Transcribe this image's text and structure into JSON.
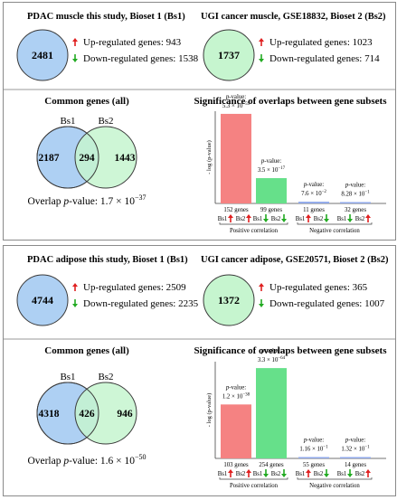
{
  "panels": [
    {
      "id": "muscle",
      "bs1_title": "PDAC muscle this study, Bioset  1 (Bs1)",
      "bs2_title": "UGI cancer muscle, GSE18832, Bioset  2 (Bs2)",
      "bs1_total": "2481",
      "bs1_up": "Up-regulated genes: 943",
      "bs1_down": "Down-regulated genes: 1538",
      "bs2_total": "1737",
      "bs2_up": "Up-regulated genes: 1023",
      "bs2_down": "Down-regulated genes: 714",
      "common_title": "Common genes (all)",
      "venn_label_bs1": "Bs1",
      "venn_label_bs2": "Bs2",
      "venn_only_bs1": "2187",
      "venn_shared": "294",
      "venn_only_bs2": "1443",
      "overlap_prefix": "Overlap ",
      "overlap_p": "p",
      "overlap_mid": "-value: 1.7 × 10",
      "overlap_exp": "−37",
      "sig_title": "Significance of overlaps between gene subsets",
      "ylabel": "- log (p-value)",
      "bars": [
        {
          "genes": "152 genes",
          "pval_label": "p-value:",
          "pval": "5.3 × 10",
          "exp": "−59",
          "neglog": 58.28,
          "color": "#f58282",
          "bs1": "up",
          "bs2": "up"
        },
        {
          "genes": "99 genes",
          "pval_label": "p-value:",
          "pval": "3.5 × 10",
          "exp": "−17",
          "neglog": 16.46,
          "color": "#66e08a",
          "bs1": "down",
          "bs2": "down"
        },
        {
          "genes": "11 genes",
          "pval_label": "p-value:",
          "pval": "7.6 × 10",
          "exp": "−2",
          "neglog": 1.12,
          "color": "#8fa8ea",
          "bs1": "up",
          "bs2": "down"
        },
        {
          "genes": "32 genes",
          "pval_label": "p-value:",
          "pval": "8.28 × 10",
          "exp": "−1",
          "neglog": 0.08,
          "color": "#8fa8ea",
          "bs1": "down",
          "bs2": "up"
        }
      ],
      "group_pos": "Positive correlation",
      "group_neg": "Negative correlation"
    },
    {
      "id": "adipose",
      "bs1_title": "PDAC adipose this study, Bioset  1 (Bs1)",
      "bs2_title": "UGI cancer adipose, GSE20571, Bioset  2 (Bs2)",
      "bs1_total": "4744",
      "bs1_up": "Up-regulated genes: 2509",
      "bs1_down": "Down-regulated genes: 2235",
      "bs2_total": "1372",
      "bs2_up": "Up-regulated genes: 365",
      "bs2_down": "Down-regulated genes: 1007",
      "common_title": "Common genes (all)",
      "venn_label_bs1": "Bs1",
      "venn_label_bs2": "Bs2",
      "venn_only_bs1": "4318",
      "venn_shared": "426",
      "venn_only_bs2": "946",
      "overlap_prefix": "Overlap ",
      "overlap_p": "p",
      "overlap_mid": "-value: 1.6 × 10",
      "overlap_exp": "−50",
      "sig_title": "Significance of overlaps between gene subsets",
      "ylabel": "- log (p-value)",
      "bars": [
        {
          "genes": "103 genes",
          "pval_label": "p-value:",
          "pval": "1.2 × 10",
          "exp": "−38",
          "neglog": 37.92,
          "color": "#f58282",
          "bs1": "up",
          "bs2": "up"
        },
        {
          "genes": "254 genes",
          "pval_label": "p-value:",
          "pval": "3.3 × 10",
          "exp": "−64",
          "neglog": 63.48,
          "color": "#66e08a",
          "bs1": "down",
          "bs2": "down"
        },
        {
          "genes": "55 genes",
          "pval_label": "p-value:",
          "pval": "1.16 × 10",
          "exp": "−1",
          "neglog": 0.94,
          "color": "#8fa8ea",
          "bs1": "up",
          "bs2": "down"
        },
        {
          "genes": "14 genes",
          "pval_label": "p-value:",
          "pval": "1.32 × 10",
          "exp": "−1",
          "neglog": 0.88,
          "color": "#8fa8ea",
          "bs1": "down",
          "bs2": "up"
        }
      ],
      "group_pos": "Positive correlation",
      "group_neg": "Negative correlation"
    }
  ],
  "colors": {
    "bs1_fill": "#aed0f3",
    "bs2_fill": "#c6f5cf",
    "up_arrow": "#e02020",
    "down_arrow": "#22aa22"
  }
}
